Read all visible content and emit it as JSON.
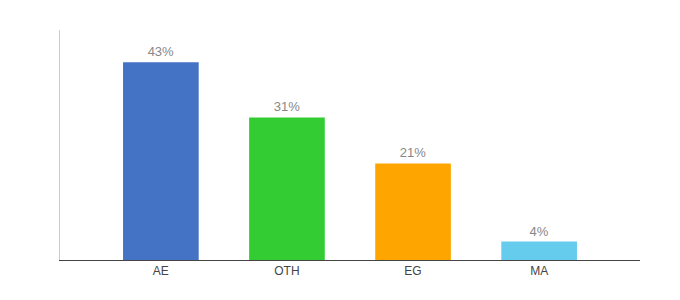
{
  "chart_data": {
    "type": "bar",
    "categories": [
      "AE",
      "OTH",
      "EG",
      "MA"
    ],
    "values": [
      43,
      31,
      21,
      4
    ],
    "value_labels": [
      "43%",
      "31%",
      "21%",
      "4%"
    ],
    "colors": [
      "#4472C4",
      "#33CC33",
      "#FFA500",
      "#66CCEE"
    ],
    "ylim": [
      0,
      50
    ],
    "grid": false,
    "data_labels": true,
    "tick_labels": "x"
  }
}
